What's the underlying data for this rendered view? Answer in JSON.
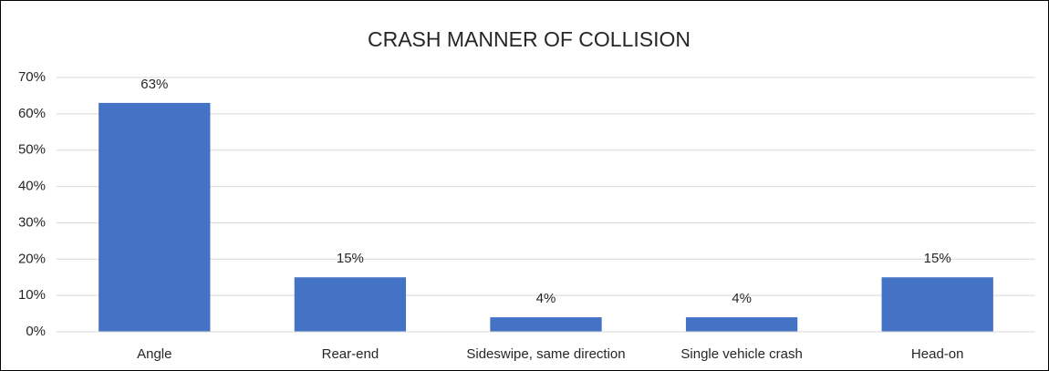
{
  "chart_data": {
    "type": "bar",
    "title": "CRASH MANNER OF COLLISION",
    "categories": [
      "Angle",
      "Rear-end",
      "Sideswipe, same direction",
      "Single vehicle crash",
      "Head-on"
    ],
    "values": [
      63,
      15,
      4,
      4,
      15
    ],
    "value_labels": [
      "63%",
      "15%",
      "4%",
      "4%",
      "15%"
    ],
    "color": "#4472c4",
    "ylim": [
      0,
      70
    ],
    "yticks": [
      {
        "value": 0,
        "label": "0%"
      },
      {
        "value": 10,
        "label": "10%"
      },
      {
        "value": 20,
        "label": "20%"
      },
      {
        "value": 30,
        "label": "30%"
      },
      {
        "value": 40,
        "label": "40%"
      },
      {
        "value": 50,
        "label": "50%"
      },
      {
        "value": 60,
        "label": "60%"
      },
      {
        "value": 70,
        "label": "70%"
      }
    ],
    "grid": true
  }
}
